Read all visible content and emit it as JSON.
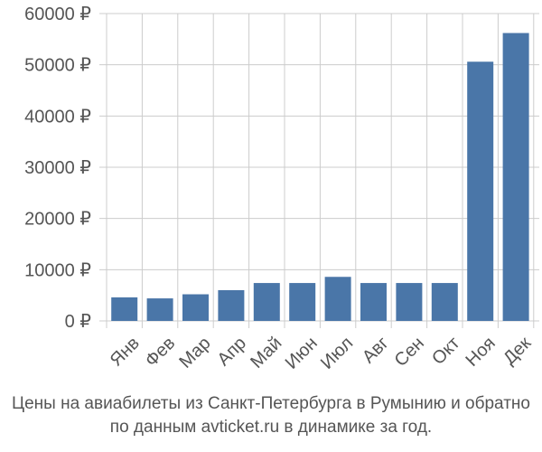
{
  "chart_data": {
    "type": "bar",
    "categories": [
      "Янв",
      "Фев",
      "Мар",
      "Апр",
      "Май",
      "Июн",
      "Июл",
      "Авг",
      "Сен",
      "Окт",
      "Ноя",
      "Дек"
    ],
    "values": [
      4600,
      4400,
      5200,
      6000,
      7400,
      7400,
      8600,
      7400,
      7400,
      7400,
      50600,
      56200
    ],
    "yticks": [
      "0 ₽",
      "10000 ₽",
      "20000 ₽",
      "30000 ₽",
      "40000 ₽",
      "50000 ₽",
      "60000 ₽"
    ],
    "ytick_values": [
      0,
      10000,
      20000,
      30000,
      40000,
      50000,
      60000
    ],
    "ylim": [
      0,
      60000
    ],
    "grid": true,
    "bar_color": "#4a76a8",
    "grid_color": "#cccccc",
    "caption_line_1": "Цены на авиабилеты из Санкт-Петербурга в Румынию и обратно",
    "caption_line_2": "по данным avticket.ru в динамике за год."
  }
}
